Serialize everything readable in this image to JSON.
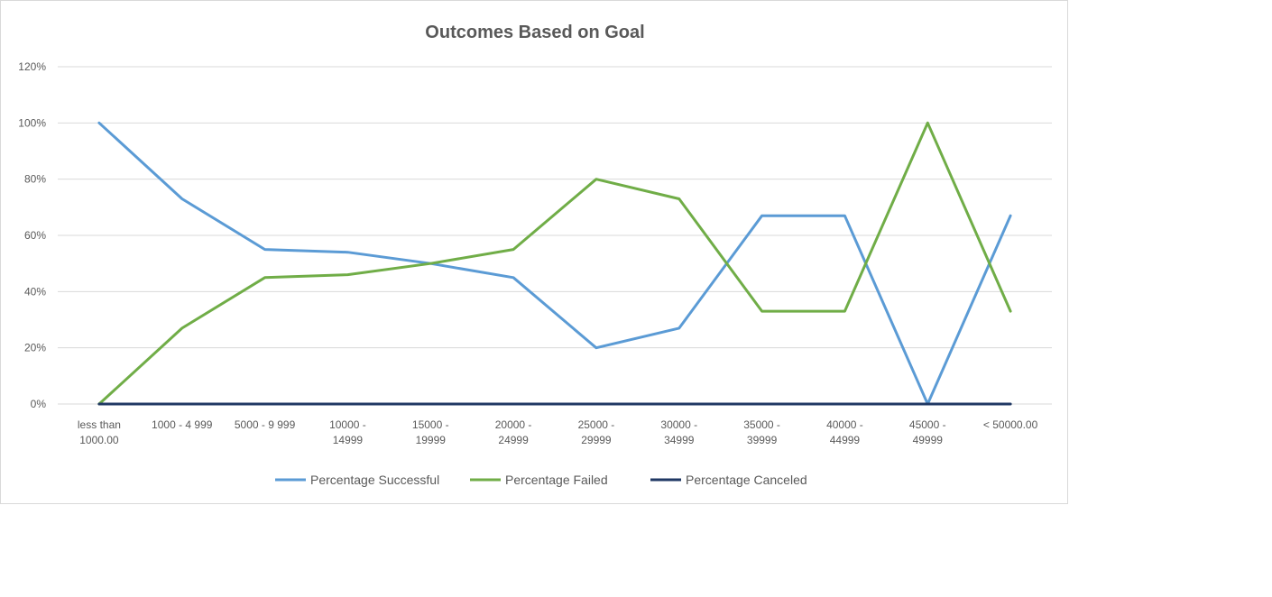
{
  "chart_data": {
    "type": "line",
    "title": "Outcomes Based on Goal",
    "xlabel": "",
    "ylabel": "",
    "categories": [
      [
        "less than",
        "1000.00"
      ],
      [
        "1000 - 4 999"
      ],
      [
        "5000 - 9 999"
      ],
      [
        "10000 -",
        "14999"
      ],
      [
        "15000 -",
        "19999"
      ],
      [
        "20000 -",
        "24999"
      ],
      [
        "25000 -",
        "29999"
      ],
      [
        "30000 -",
        "34999"
      ],
      [
        "35000 -",
        "39999"
      ],
      [
        "40000 -",
        "44999"
      ],
      [
        "45000 -",
        "49999"
      ],
      [
        "< 50000.00"
      ]
    ],
    "yticks": [
      "0%",
      "20%",
      "40%",
      "60%",
      "80%",
      "100%",
      "120%"
    ],
    "ylim": [
      0,
      1.2
    ],
    "grid": true,
    "legend_position": "bottom",
    "series": [
      {
        "name": "Percentage Successful",
        "color": "#5b9bd5",
        "values": [
          1.0,
          0.73,
          0.55,
          0.54,
          0.5,
          0.45,
          0.2,
          0.27,
          0.67,
          0.67,
          0.0,
          0.67
        ]
      },
      {
        "name": "Percentage Failed",
        "color": "#70ad47",
        "values": [
          0.0,
          0.27,
          0.45,
          0.46,
          0.5,
          0.55,
          0.8,
          0.73,
          0.33,
          0.33,
          1.0,
          0.33
        ]
      },
      {
        "name": "Percentage Canceled",
        "color": "#203864",
        "values": [
          0,
          0,
          0,
          0,
          0,
          0,
          0,
          0,
          0,
          0,
          0,
          0
        ]
      }
    ]
  }
}
